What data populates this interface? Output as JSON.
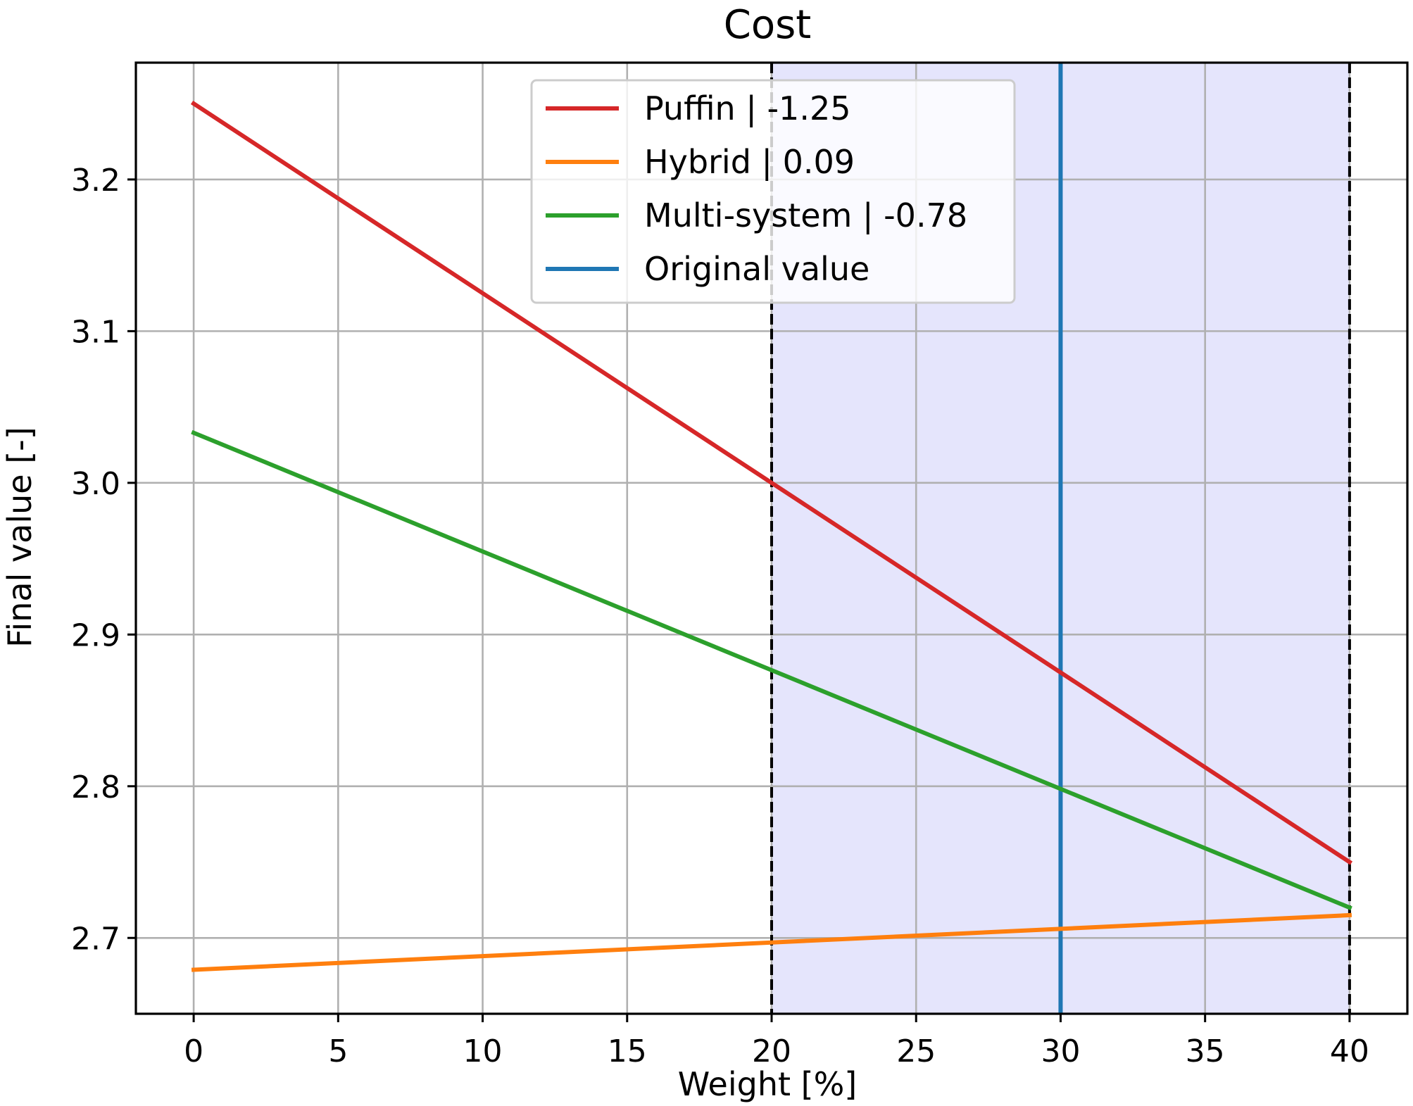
{
  "chart_data": {
    "type": "line",
    "title": "Cost",
    "xlabel": "Weight [%]",
    "ylabel": "Final value [-]",
    "xlim": [
      -2,
      42
    ],
    "ylim": [
      2.65,
      3.277
    ],
    "xticks": [
      0,
      5,
      10,
      15,
      20,
      25,
      30,
      35,
      40
    ],
    "yticks": [
      2.7,
      2.8,
      2.9,
      3.0,
      3.1,
      3.2
    ],
    "ytick_labels": [
      "2.7",
      "2.8",
      "2.9",
      "3.0",
      "3.1",
      "3.2"
    ],
    "grid": true,
    "legend_position": "top-center",
    "shaded_region": {
      "x_start": 20,
      "x_end": 40,
      "color": "#e5e5fc"
    },
    "dashed_lines": [
      20,
      40
    ],
    "series": [
      {
        "name": "Puffin | -1.25",
        "color": "#d62728",
        "x": [
          0,
          40
        ],
        "y": [
          3.25,
          2.75
        ]
      },
      {
        "name": "Hybrid | 0.09",
        "color": "#ff7f0e",
        "x": [
          0,
          40
        ],
        "y": [
          2.679,
          2.715
        ]
      },
      {
        "name": "Multi-system | -0.78",
        "color": "#2ca02c",
        "x": [
          0,
          40
        ],
        "y": [
          3.033,
          2.72
        ]
      }
    ],
    "reference_line": {
      "name": "Original value",
      "color": "#1f77b4",
      "x": 30
    }
  }
}
